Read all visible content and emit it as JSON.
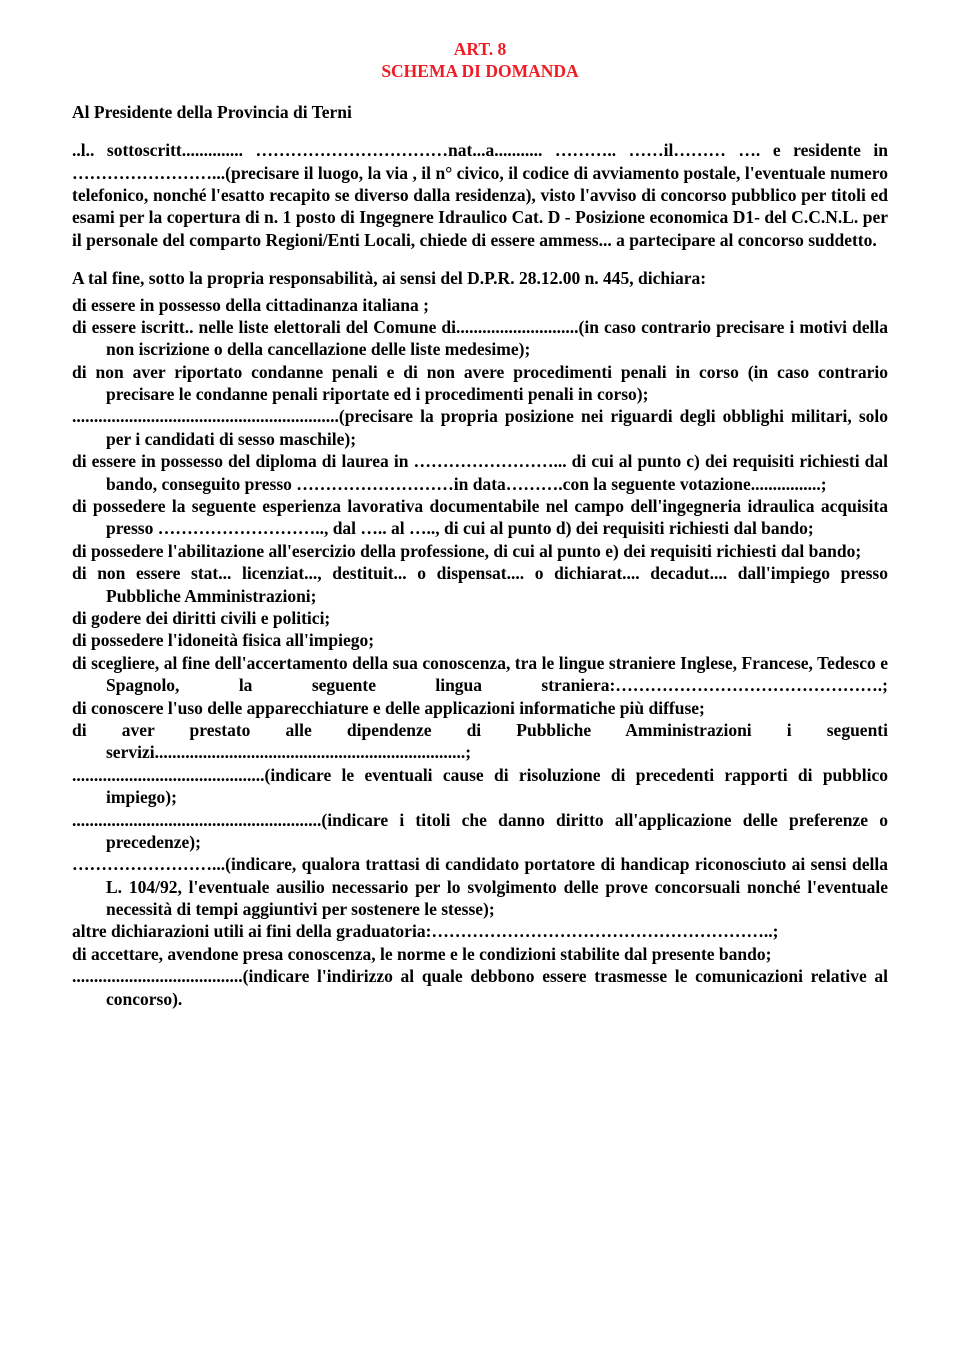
{
  "colors": {
    "accent": "#ee1c25",
    "text": "#000000",
    "bg": "#ffffff"
  },
  "typography": {
    "font_family": "Times New Roman",
    "base_size_pt": 13,
    "weight": "bold"
  },
  "heading": {
    "line1": "ART. 8",
    "line2": "SCHEMA DI DOMANDA"
  },
  "addressee": "Al  Presidente della Provincia di Terni",
  "intro": {
    "line1_pre": "..l..",
    "line1_mid": " sottoscritt.............. ……………………………",
    "line1_nat": "nat...a........... ……….. ……il……… ….",
    "line2": "e residente in ……………………..."
  },
  "body": "(precisare il luogo, la via , il n° civico, il codice di avviamento postale, l'eventuale numero telefonico, nonché l'esatto recapito se diverso dalla residenza), visto l'avviso di concorso pubblico per titoli ed esami per la copertura di n. 1 posto di Ingegnere Idraulico Cat. D - Posizione economica D1- del C.C.N.L. per il personale del comparto Regioni/Enti Locali, chiede di essere ammess... a partecipare al concorso suddetto.",
  "responsibility": "A tal fine, sotto la propria responsabilità, ai sensi del D.P.R. 28.12.00 n. 445, dichiara:",
  "items": {
    "i1": "di essere in possesso della cittadinanza italiana ;",
    "i2": "di essere iscritt.. nelle liste elettorali del Comune di............................(in caso contrario precisare i motivi della non iscrizione o della cancellazione delle liste medesime);",
    "i3": "di non aver riportato condanne penali e di non avere procedimenti penali in corso (in caso contrario precisare le condanne penali riportate ed i procedimenti penali in corso);",
    "i4": ".............................................................(precisare la propria posizione nei riguardi degli obblighi militari, solo per i candidati di sesso maschile);",
    "i5": "di essere in possesso del diploma di laurea in ……………………... di cui al punto c) dei requisiti richiesti dal bando, conseguito presso ………………………in data……….con la seguente votazione................;",
    "i6": "di possedere la seguente esperienza lavorativa documentabile nel campo dell'ingegneria idraulica acquisita presso ……………………….., dal ….. al ….., di cui al punto d) dei requisiti richiesti dal bando;",
    "i7": "di possedere l'abilitazione all'esercizio della professione, di cui al punto e) dei requisiti richiesti dal bando;",
    "i8": "di non essere stat... licenziat...,  destituit... o dispensat.... o dichiarat.... decadut.... dall'impiego presso Pubbliche Amministrazioni;",
    "i9": "di godere dei diritti civili e politici;",
    "i10": "di possedere l'idoneità fisica all'impiego;",
    "i11": "di scegliere, al fine dell'accertamento della sua conoscenza, tra le lingue straniere Inglese, Francese, Tedesco e Spagnolo, la seguente lingua straniera:……………………………………….;",
    "i12": "di conoscere l'uso delle apparecchiature e delle applicazioni informatiche più diffuse;",
    "i13": "di aver prestato alle dipendenze di Pubbliche Amministrazioni i seguenti servizi.......................................................................;",
    "i14": "............................................(indicare le eventuali cause di risoluzione di precedenti rapporti di pubblico impiego);",
    "i15": ".........................................................(indicare i titoli che danno diritto all'applicazione delle preferenze o precedenze);",
    "i16": "……………………...(indicare, qualora trattasi di candidato portatore di handicap riconosciuto ai sensi della L. 104/92, l'eventuale ausilio necessario per lo svolgimento delle prove concorsuali nonché l'eventuale necessità di tempi aggiuntivi per sostenere le stesse);",
    "i17": "altre dichiarazioni utili ai fini della graduatoria:…………………………………………………..;",
    "i18": "di accettare, avendone presa conoscenza, le norme e le condizioni stabilite dal presente bando;",
    "i19": ".......................................(indicare l'indirizzo al quale debbono essere trasmesse le comunicazioni relative al concorso)."
  }
}
